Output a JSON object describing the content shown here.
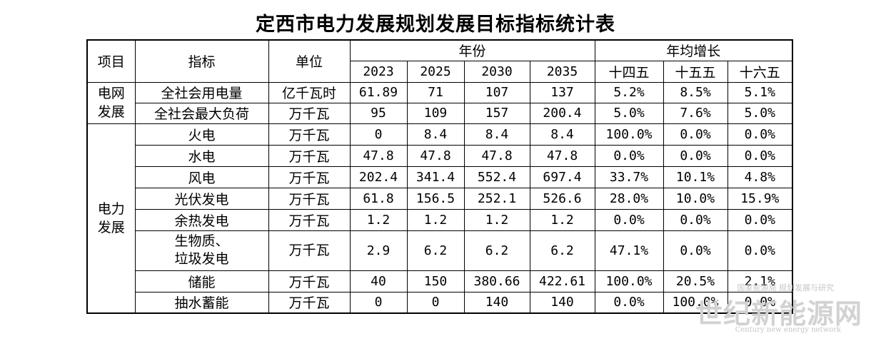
{
  "title": "定西市电力发展规划发展目标指标统计表",
  "headers": {
    "category": "项目",
    "indicator": "指标",
    "unit": "单位",
    "year_group": "年份",
    "growth_group": "年均增长",
    "years": [
      "2023",
      "2025",
      "2030",
      "2035"
    ],
    "periods": [
      "十四五",
      "十五五",
      "十六五"
    ]
  },
  "groups": [
    {
      "category": "电网\n发展",
      "rows": [
        {
          "indicator": "全社会用电量",
          "unit": "亿千瓦时",
          "values": [
            "61.89",
            "71",
            "107",
            "137"
          ],
          "growth": [
            "5.2%",
            "8.5%",
            "5.1%"
          ]
        },
        {
          "indicator": "全社会最大负荷",
          "unit": "万千瓦",
          "values": [
            "95",
            "109",
            "157",
            "200.4"
          ],
          "growth": [
            "5.0%",
            "7.6%",
            "5.0%"
          ]
        }
      ]
    },
    {
      "category": "电力\n发展",
      "rows": [
        {
          "indicator": "火电",
          "unit": "万千瓦",
          "values": [
            "0",
            "8.4",
            "8.4",
            "8.4"
          ],
          "growth": [
            "100.0%",
            "0.0%",
            "0.0%"
          ]
        },
        {
          "indicator": "水电",
          "unit": "万千瓦",
          "values": [
            "47.8",
            "47.8",
            "47.8",
            "47.8"
          ],
          "growth": [
            "0.0%",
            "0.0%",
            "0.0%"
          ]
        },
        {
          "indicator": "风电",
          "unit": "万千瓦",
          "values": [
            "202.4",
            "341.4",
            "552.4",
            "697.4"
          ],
          "growth": [
            "33.7%",
            "10.1%",
            "4.8%"
          ]
        },
        {
          "indicator": "光伏发电",
          "unit": "万千瓦",
          "values": [
            "61.8",
            "156.5",
            "252.1",
            "526.6"
          ],
          "growth": [
            "28.0%",
            "10.0%",
            "15.9%"
          ]
        },
        {
          "indicator": "余热发电",
          "unit": "万千瓦",
          "values": [
            "1.2",
            "1.2",
            "1.2",
            "1.2"
          ],
          "growth": [
            "0.0%",
            "0.0%",
            "0.0%"
          ]
        },
        {
          "indicator": "生物质、\n垃圾发电",
          "unit": "万千瓦",
          "values": [
            "2.9",
            "6.2",
            "6.2",
            "6.2"
          ],
          "growth": [
            "47.1%",
            "0.0%",
            "0.0%"
          ]
        },
        {
          "indicator": "储能",
          "unit": "万千瓦",
          "values": [
            "40",
            "150",
            "380.66",
            "422.61"
          ],
          "growth": [
            "100.0%",
            "20.5%",
            "2.1%"
          ]
        },
        {
          "indicator": "抽水蓄能",
          "unit": "万千瓦",
          "values": [
            "0",
            "0",
            "140",
            "140"
          ],
          "growth": [
            "0.0%",
            "100.0%",
            "0.0%"
          ]
        }
      ]
    }
  ],
  "watermark": {
    "top": "国家能源局 规划发展与研究",
    "main": "世纪新能源网",
    "sub": "Century new energy network"
  }
}
